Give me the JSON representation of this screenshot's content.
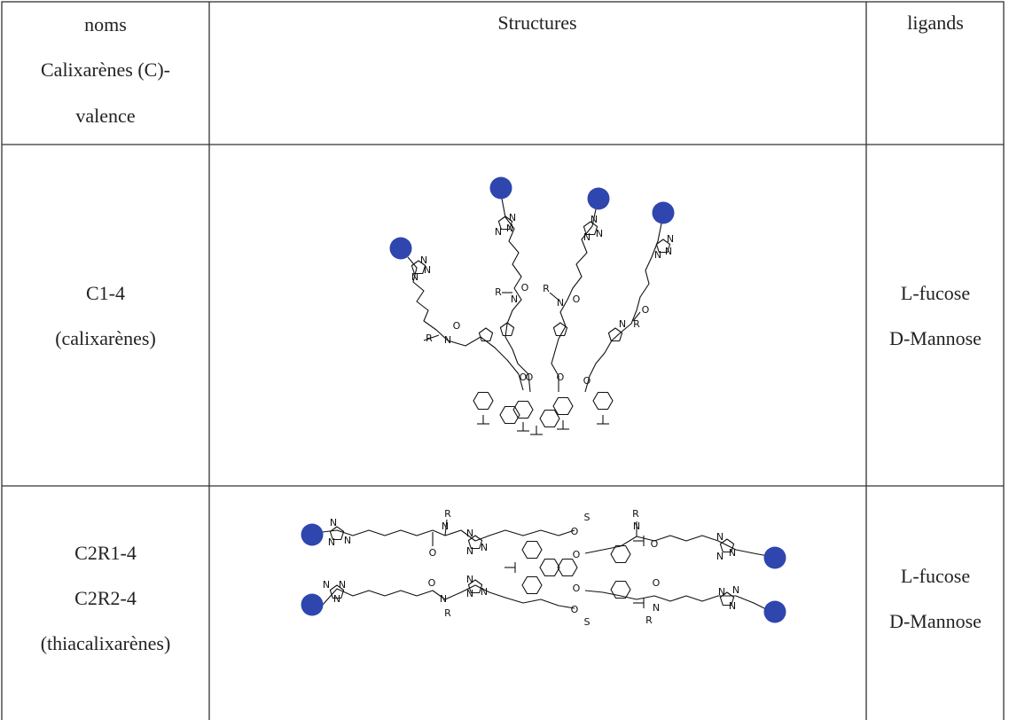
{
  "table": {
    "header": {
      "names": [
        "noms",
        "Calixarènes (C)-",
        "valence"
      ],
      "structures": "Structures",
      "ligands": "ligands"
    },
    "rows": [
      {
        "names": [
          "C1-4",
          "(calixarènes)"
        ],
        "atoms": [
          "N",
          "N",
          "N",
          "O",
          "R",
          "N",
          "O",
          "N",
          "N",
          "N",
          "O",
          "R",
          "N",
          "O",
          "N",
          "N",
          "N",
          "O",
          "R",
          "N",
          "O",
          "N",
          "N",
          "N",
          "O",
          "R",
          "N",
          "O"
        ],
        "ligands": [
          "L-fucose",
          "D-Mannose"
        ]
      },
      {
        "names": [
          "C2R1-4",
          "C2R2-4",
          "(thiacalixarènes)"
        ],
        "atoms": [
          "N",
          "N",
          "N",
          "R",
          "N",
          "O",
          "N",
          "N",
          "N",
          "O",
          "S",
          "O",
          "R",
          "N",
          "O",
          "N",
          "N",
          "N",
          "N",
          "N",
          "N",
          "O",
          "N",
          "R",
          "N",
          "N",
          "N",
          "O",
          "S",
          "O",
          "R",
          "N",
          "O",
          "N",
          "N",
          "N"
        ],
        "ligands": [
          "L-fucose",
          "D-Mannose"
        ]
      }
    ]
  }
}
